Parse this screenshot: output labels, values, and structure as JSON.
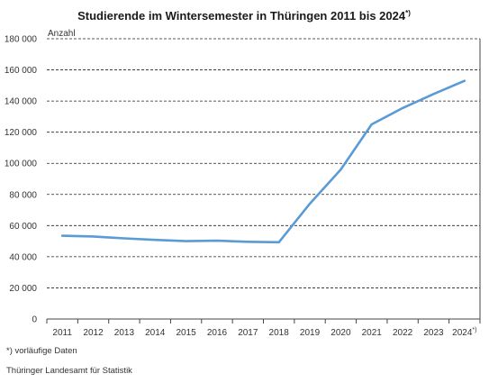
{
  "chart_data": {
    "type": "line",
    "title": "Studierende im Wintersemester in Thüringen 2011 bis 2024",
    "title_footnote_marker": "*)",
    "ylabel": "Anzahl",
    "xlabel": "",
    "ylim": [
      0,
      180000
    ],
    "y_ticks": [
      0,
      20000,
      40000,
      60000,
      80000,
      100000,
      120000,
      140000,
      160000,
      180000
    ],
    "y_tick_labels": [
      "0",
      "20 000",
      "40 000",
      "60 000",
      "80 000",
      "100 000",
      "120 000",
      "140 000",
      "160 000",
      "180 000"
    ],
    "x": [
      "2011",
      "2012",
      "2013",
      "2014",
      "2015",
      "2016",
      "2017",
      "2018",
      "2019",
      "2020",
      "2021",
      "2022",
      "2023",
      "2024"
    ],
    "x_footnote_on": "2024",
    "x_footnote_marker": "*)",
    "series": [
      {
        "values": [
          53500,
          53000,
          51800,
          50800,
          50000,
          50300,
          49600,
          49300,
          74000,
          96000,
          125000,
          135500,
          144500,
          153000
        ],
        "color": "#5b9bd5"
      }
    ],
    "grid": "horizontal dashed",
    "legend": "none"
  },
  "footnote": "*) vorläufige Daten",
  "source": "Thüringer Landesamt für Statistik"
}
